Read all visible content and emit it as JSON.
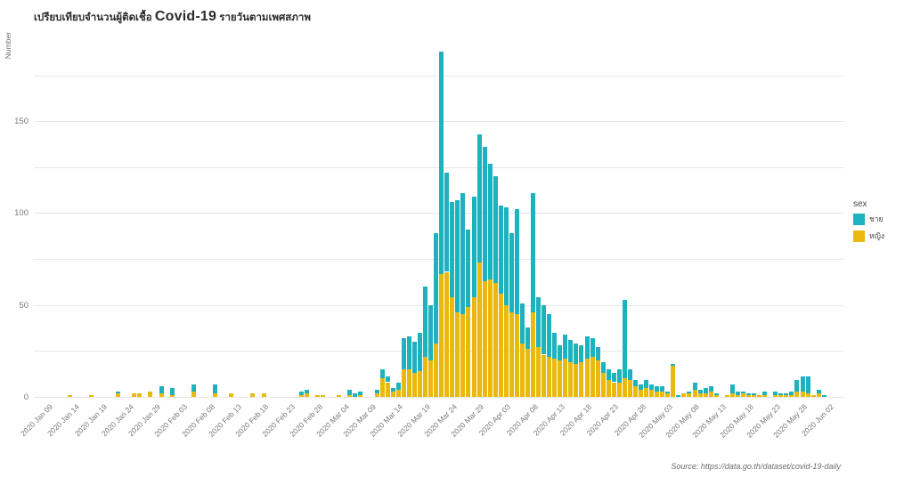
{
  "title": {
    "prefix": "เปรียบเทียบจำนวนผู้ติดเชื้อ",
    "highlight": "Covid-19",
    "suffix": "รายวันตามเพศสภาพ"
  },
  "y_axis": {
    "label": "Number",
    "tick_labels": [
      0,
      50,
      100,
      150
    ],
    "gridlines": [
      0,
      25,
      50,
      75,
      100,
      125,
      150,
      175
    ],
    "max": 194
  },
  "x_axis": {
    "start_date": "2020-01-09",
    "tick_step_days": 5,
    "tick_labels": [
      "2020 Jan 09",
      "2020 Jan 14",
      "2020 Jan 19",
      "2020 Jan 24",
      "2020 Jan 29",
      "2020 Feb 03",
      "2020 Feb 08",
      "2020 Feb 13",
      "2020 Feb 18",
      "2020 Feb 23",
      "2020 Feb 28",
      "2020 Mar 04",
      "2020 Mar 09",
      "2020 Mar 14",
      "2020 Mar 19",
      "2020 Mar 24",
      "2020 Mar 29",
      "2020 Apr 03",
      "2020 Apr 08",
      "2020 Apr 13",
      "2020 Apr 18",
      "2020 Apr 23",
      "2020 Apr 28",
      "2020 May 03",
      "2020 May 08",
      "2020 May 13",
      "2020 May 18",
      "2020 May 23",
      "2020 May 28",
      "2020 Jun 02"
    ]
  },
  "legend": {
    "title": "sex",
    "items": [
      {
        "label": "ชาย",
        "color": "#1cb2be"
      },
      {
        "label": "หญิง",
        "color": "#eab90e"
      }
    ]
  },
  "source": "Source: https://data.go.th/dataset/covid-19-daily",
  "chart_data": {
    "type": "bar",
    "stacked": true,
    "title": "เปรียบเทียบจำนวนผู้ติดเชื้อ Covid-19 รายวันตามเพศสภาพ",
    "ylabel": "Number",
    "ylim": [
      0,
      195
    ],
    "grid": true,
    "legend_position": "right",
    "series": [
      {
        "name": "ชาย",
        "key": "male",
        "color": "#1cb2be"
      },
      {
        "name": "หญิง",
        "key": "female",
        "color": "#eab90e"
      }
    ],
    "bars": [
      {
        "date": "2020-01-13",
        "male": 0,
        "female": 1
      },
      {
        "date": "2020-01-17",
        "male": 0,
        "female": 1
      },
      {
        "date": "2020-01-22",
        "male": 1,
        "female": 2
      },
      {
        "date": "2020-01-25",
        "male": 0,
        "female": 2
      },
      {
        "date": "2020-01-26",
        "male": 0,
        "female": 2
      },
      {
        "date": "2020-01-28",
        "male": 0,
        "female": 3
      },
      {
        "date": "2020-01-30",
        "male": 4,
        "female": 2
      },
      {
        "date": "2020-02-01",
        "male": 4,
        "female": 1
      },
      {
        "date": "2020-02-05",
        "male": 4,
        "female": 3
      },
      {
        "date": "2020-02-09",
        "male": 5,
        "female": 2
      },
      {
        "date": "2020-02-12",
        "male": 0,
        "female": 2
      },
      {
        "date": "2020-02-16",
        "male": 0,
        "female": 2
      },
      {
        "date": "2020-02-18",
        "male": 0,
        "female": 2
      },
      {
        "date": "2020-02-25",
        "male": 2,
        "female": 1
      },
      {
        "date": "2020-02-26",
        "male": 2,
        "female": 2
      },
      {
        "date": "2020-02-28",
        "male": 0,
        "female": 1
      },
      {
        "date": "2020-02-29",
        "male": 0,
        "female": 1
      },
      {
        "date": "2020-03-03",
        "male": 0,
        "female": 1
      },
      {
        "date": "2020-03-05",
        "male": 3,
        "female": 1
      },
      {
        "date": "2020-03-06",
        "male": 2,
        "female": 0
      },
      {
        "date": "2020-03-07",
        "male": 2,
        "female": 1
      },
      {
        "date": "2020-03-10",
        "male": 2,
        "female": 2
      },
      {
        "date": "2020-03-11",
        "male": 5,
        "female": 10
      },
      {
        "date": "2020-03-12",
        "male": 3,
        "female": 8
      },
      {
        "date": "2020-03-13",
        "male": 2,
        "female": 3
      },
      {
        "date": "2020-03-14",
        "male": 4,
        "female": 4
      },
      {
        "date": "2020-03-15",
        "male": 17,
        "female": 15
      },
      {
        "date": "2020-03-16",
        "male": 18,
        "female": 15
      },
      {
        "date": "2020-03-17",
        "male": 17,
        "female": 13
      },
      {
        "date": "2020-03-18",
        "male": 21,
        "female": 14
      },
      {
        "date": "2020-03-19",
        "male": 38,
        "female": 22
      },
      {
        "date": "2020-03-20",
        "male": 30,
        "female": 20
      },
      {
        "date": "2020-03-21",
        "male": 60,
        "female": 29
      },
      {
        "date": "2020-03-22",
        "male": 121,
        "female": 67
      },
      {
        "date": "2020-03-23",
        "male": 54,
        "female": 68
      },
      {
        "date": "2020-03-24",
        "male": 52,
        "female": 54
      },
      {
        "date": "2020-03-25",
        "male": 61,
        "female": 46
      },
      {
        "date": "2020-03-26",
        "male": 66,
        "female": 45
      },
      {
        "date": "2020-03-27",
        "male": 42,
        "female": 49
      },
      {
        "date": "2020-03-28",
        "male": 55,
        "female": 54
      },
      {
        "date": "2020-03-29",
        "male": 70,
        "female": 73
      },
      {
        "date": "2020-03-30",
        "male": 73,
        "female": 63
      },
      {
        "date": "2020-03-31",
        "male": 63,
        "female": 64
      },
      {
        "date": "2020-04-01",
        "male": 58,
        "female": 62
      },
      {
        "date": "2020-04-02",
        "male": 48,
        "female": 56
      },
      {
        "date": "2020-04-03",
        "male": 53,
        "female": 50
      },
      {
        "date": "2020-04-04",
        "male": 43,
        "female": 46
      },
      {
        "date": "2020-04-05",
        "male": 57,
        "female": 45
      },
      {
        "date": "2020-04-06",
        "male": 22,
        "female": 29
      },
      {
        "date": "2020-04-07",
        "male": 12,
        "female": 26
      },
      {
        "date": "2020-04-08",
        "male": 65,
        "female": 46
      },
      {
        "date": "2020-04-09",
        "male": 27,
        "female": 27
      },
      {
        "date": "2020-04-10",
        "male": 27,
        "female": 23
      },
      {
        "date": "2020-04-11",
        "male": 23,
        "female": 22
      },
      {
        "date": "2020-04-12",
        "male": 14,
        "female": 21
      },
      {
        "date": "2020-04-13",
        "male": 8,
        "female": 20
      },
      {
        "date": "2020-04-14",
        "male": 13,
        "female": 21
      },
      {
        "date": "2020-04-15",
        "male": 12,
        "female": 19
      },
      {
        "date": "2020-04-16",
        "male": 11,
        "female": 18
      },
      {
        "date": "2020-04-17",
        "male": 9,
        "female": 19
      },
      {
        "date": "2020-04-18",
        "male": 12,
        "female": 21
      },
      {
        "date": "2020-04-19",
        "male": 10,
        "female": 22
      },
      {
        "date": "2020-04-20",
        "male": 7,
        "female": 20
      },
      {
        "date": "2020-04-21",
        "male": 6,
        "female": 13
      },
      {
        "date": "2020-04-22",
        "male": 6,
        "female": 9
      },
      {
        "date": "2020-04-23",
        "male": 5,
        "female": 8
      },
      {
        "date": "2020-04-24",
        "male": 7,
        "female": 8
      },
      {
        "date": "2020-04-25",
        "male": 43,
        "female": 10
      },
      {
        "date": "2020-04-26",
        "male": 6,
        "female": 9
      },
      {
        "date": "2020-04-27",
        "male": 3,
        "female": 6
      },
      {
        "date": "2020-04-28",
        "male": 3,
        "female": 4
      },
      {
        "date": "2020-04-29",
        "male": 4,
        "female": 5
      },
      {
        "date": "2020-04-30",
        "male": 3,
        "female": 4
      },
      {
        "date": "2020-05-01",
        "male": 3,
        "female": 3
      },
      {
        "date": "2020-05-02",
        "male": 3,
        "female": 3
      },
      {
        "date": "2020-05-03",
        "male": 1,
        "female": 2
      },
      {
        "date": "2020-05-04",
        "male": 1,
        "female": 17
      },
      {
        "date": "2020-05-05",
        "male": 1,
        "female": 0
      },
      {
        "date": "2020-05-06",
        "male": 0,
        "female": 2
      },
      {
        "date": "2020-05-07",
        "male": 1,
        "female": 2
      },
      {
        "date": "2020-05-08",
        "male": 4,
        "female": 4
      },
      {
        "date": "2020-05-09",
        "male": 2,
        "female": 2
      },
      {
        "date": "2020-05-10",
        "male": 3,
        "female": 2
      },
      {
        "date": "2020-05-11",
        "male": 3,
        "female": 3
      },
      {
        "date": "2020-05-12",
        "male": 1,
        "female": 1
      },
      {
        "date": "2020-05-14",
        "male": 0,
        "female": 1
      },
      {
        "date": "2020-05-15",
        "male": 5,
        "female": 2
      },
      {
        "date": "2020-05-16",
        "male": 2,
        "female": 1
      },
      {
        "date": "2020-05-17",
        "male": 1,
        "female": 2
      },
      {
        "date": "2020-05-18",
        "male": 1,
        "female": 1
      },
      {
        "date": "2020-05-19",
        "male": 1,
        "female": 1
      },
      {
        "date": "2020-05-20",
        "male": 0,
        "female": 1
      },
      {
        "date": "2020-05-21",
        "male": 2,
        "female": 1
      },
      {
        "date": "2020-05-23",
        "male": 2,
        "female": 1
      },
      {
        "date": "2020-05-24",
        "male": 1,
        "female": 1
      },
      {
        "date": "2020-05-25",
        "male": 1,
        "female": 1
      },
      {
        "date": "2020-05-26",
        "male": 2,
        "female": 1
      },
      {
        "date": "2020-05-27",
        "male": 6,
        "female": 3
      },
      {
        "date": "2020-05-28",
        "male": 8,
        "female": 3
      },
      {
        "date": "2020-05-29",
        "male": 9,
        "female": 2
      },
      {
        "date": "2020-05-30",
        "male": 0,
        "female": 1
      },
      {
        "date": "2020-05-31",
        "male": 2,
        "female": 2
      },
      {
        "date": "2020-06-01",
        "male": 1,
        "female": 0
      }
    ]
  }
}
